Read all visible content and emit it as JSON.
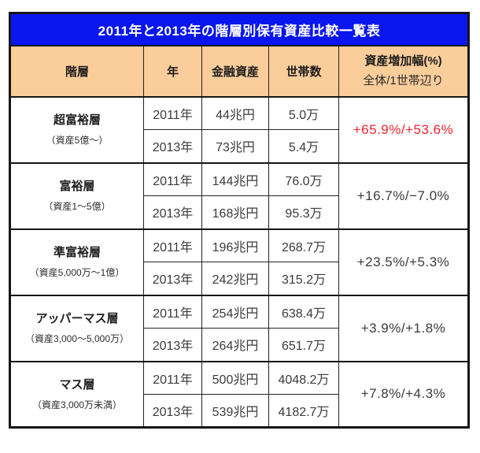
{
  "title": "2011年と2013年の階層別保有資産比較一覧表",
  "colors": {
    "title_bg": "#0a16ee",
    "title_text": "#ffffff",
    "header_bg": "#facd9b",
    "border": "#161616",
    "body_text": "#3a3a3a",
    "highlight_red": "#f2262e"
  },
  "header": {
    "tier": "階層",
    "year": "年",
    "assets": "金融資産",
    "households": "世帯数",
    "change_line1": "資産増加幅(%)",
    "change_line2": "全体/1世帯辺り"
  },
  "groups": [
    {
      "tier": "超富裕層",
      "range": "（資産5億～）",
      "rows": [
        {
          "year": "2011年",
          "assets": "44兆円",
          "households": "5.0万"
        },
        {
          "year": "2013年",
          "assets": "73兆円",
          "households": "5.4万"
        }
      ],
      "change": "+65.9%/+53.6%",
      "change_color": "#f2262e"
    },
    {
      "tier": "富裕層",
      "range": "（資産1～5億）",
      "rows": [
        {
          "year": "2011年",
          "assets": "144兆円",
          "households": "76.0万"
        },
        {
          "year": "2013年",
          "assets": "168兆円",
          "households": "95.3万"
        }
      ],
      "change": "+16.7%/−7.0%",
      "change_color": "#3a3a3a"
    },
    {
      "tier": "準富裕層",
      "range": "（資産5,000万～1億）",
      "rows": [
        {
          "year": "2011年",
          "assets": "196兆円",
          "households": "268.7万"
        },
        {
          "year": "2013年",
          "assets": "242兆円",
          "households": "315.2万"
        }
      ],
      "change": "+23.5%/+5.3%",
      "change_color": "#3a3a3a"
    },
    {
      "tier": "アッパーマス層",
      "range": "（資産3,000～5,000万）",
      "rows": [
        {
          "year": "2011年",
          "assets": "254兆円",
          "households": "638.4万"
        },
        {
          "year": "2013年",
          "assets": "264兆円",
          "households": "651.7万"
        }
      ],
      "change": "+3.9%/+1.8%",
      "change_color": "#3a3a3a"
    },
    {
      "tier": "マス層",
      "range": "（資産3,000万未満）",
      "rows": [
        {
          "year": "2011年",
          "assets": "500兆円",
          "households": "4048.2万"
        },
        {
          "year": "2013年",
          "assets": "539兆円",
          "households": "4182.7万"
        }
      ],
      "change": "+7.8%/+4.3%",
      "change_color": "#3a3a3a"
    }
  ]
}
